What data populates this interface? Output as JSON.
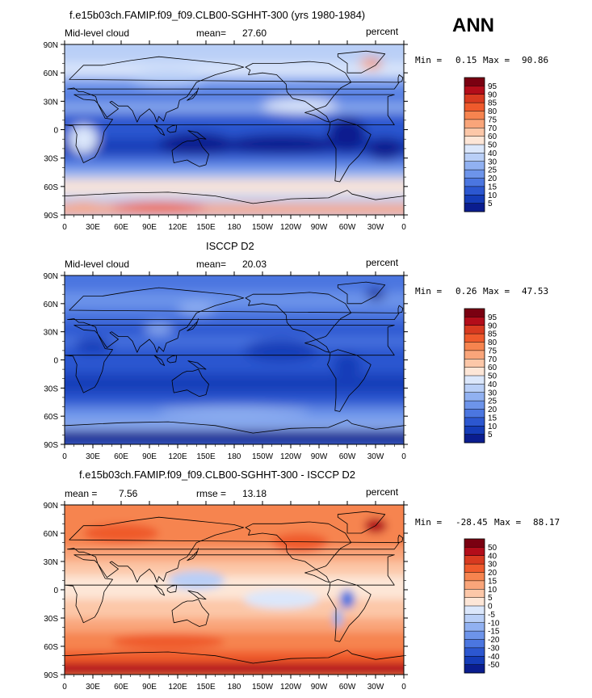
{
  "season": "ANN",
  "colorbars": {
    "abs": {
      "labels": [
        "95",
        "90",
        "85",
        "80",
        "75",
        "70",
        "60",
        "50",
        "40",
        "30",
        "25",
        "20",
        "15",
        "10",
        "5"
      ],
      "colors": [
        "#7a0011",
        "#b30d1a",
        "#d83a20",
        "#ef5a2c",
        "#f6844f",
        "#f9a57a",
        "#fcc7a8",
        "#fde6d7",
        "#dbe7fb",
        "#b9cff7",
        "#91b1f1",
        "#6d94ea",
        "#4b76e0",
        "#2c57d0",
        "#153cb8",
        "#0a1d8f"
      ]
    },
    "diff": {
      "labels": [
        "50",
        "40",
        "30",
        "20",
        "15",
        "10",
        "5",
        "0",
        "-5",
        "-10",
        "-15",
        "-20",
        "-30",
        "-40",
        "-50"
      ],
      "colors": [
        "#7a0011",
        "#b30d1a",
        "#d83a20",
        "#ef5a2c",
        "#f6844f",
        "#f9a57a",
        "#fcc7a8",
        "#fde6d7",
        "#dbe7fb",
        "#b9cff7",
        "#91b1f1",
        "#6d94ea",
        "#4b76e0",
        "#2c57d0",
        "#153cb8",
        "#0a1d8f"
      ]
    }
  },
  "axes": {
    "x_ticks": [
      "0",
      "30E",
      "60E",
      "90E",
      "120E",
      "150E",
      "180",
      "150W",
      "120W",
      "90W",
      "60W",
      "30W",
      "0"
    ],
    "y_ticks": [
      "90N",
      "60N",
      "30N",
      "0",
      "30S",
      "60S",
      "90S"
    ]
  },
  "panels": [
    {
      "title": "f.e15b03ch.FAMIP.f09_f09.CLB00-SGHHT-300 (yrs 1980-1984)",
      "left_label": "Mid-level cloud",
      "mean_label": "mean=",
      "mean_value": "27.60",
      "units": "percent",
      "min_label": "Min =",
      "min_value": "0.15",
      "max_label": "Max =",
      "max_value": "90.86"
    },
    {
      "title": "ISCCP D2",
      "left_label": "Mid-level cloud",
      "mean_label": "mean=",
      "mean_value": "20.03",
      "units": "percent",
      "min_label": "Min =",
      "min_value": "0.26",
      "max_label": "Max =",
      "max_value": "47.53"
    },
    {
      "title": "f.e15b03ch.FAMIP.f09_f09.CLB00-SGHHT-300 - ISCCP D2",
      "left_label": "mean =",
      "mean_value": "7.56",
      "rmse_label": "rmse =",
      "rmse_value": "13.18",
      "units": "percent",
      "min_label": "Min =",
      "min_value": "-28.45",
      "max_label": "Max =",
      "max_value": "88.17"
    }
  ],
  "chart_data": [
    {
      "type": "heatmap",
      "title": "f.e15b03ch.FAMIP.f09_f09.CLB00-SGHHT-300 (yrs 1980-1984)",
      "variable": "Mid-level cloud",
      "units": "percent",
      "mean": 27.6,
      "min": 0.15,
      "max": 90.86,
      "xlim": [
        0,
        360
      ],
      "ylim": [
        -90,
        90
      ],
      "levels": [
        5,
        10,
        15,
        20,
        25,
        30,
        40,
        50,
        60,
        70,
        75,
        80,
        85,
        90,
        95
      ]
    },
    {
      "type": "heatmap",
      "title": "ISCCP D2",
      "variable": "Mid-level cloud",
      "units": "percent",
      "mean": 20.03,
      "min": 0.26,
      "max": 47.53,
      "xlim": [
        0,
        360
      ],
      "ylim": [
        -90,
        90
      ],
      "levels": [
        5,
        10,
        15,
        20,
        25,
        30,
        40,
        50,
        60,
        70,
        75,
        80,
        85,
        90,
        95
      ]
    },
    {
      "type": "heatmap",
      "title": "f.e15b03ch.FAMIP.f09_f09.CLB00-SGHHT-300 - ISCCP D2",
      "units": "percent",
      "mean": 7.56,
      "rmse": 13.18,
      "min": -28.45,
      "max": 88.17,
      "xlim": [
        0,
        360
      ],
      "ylim": [
        -90,
        90
      ],
      "levels": [
        -50,
        -40,
        -30,
        -20,
        -15,
        -10,
        -5,
        0,
        5,
        10,
        15,
        20,
        30,
        40,
        50
      ]
    }
  ]
}
